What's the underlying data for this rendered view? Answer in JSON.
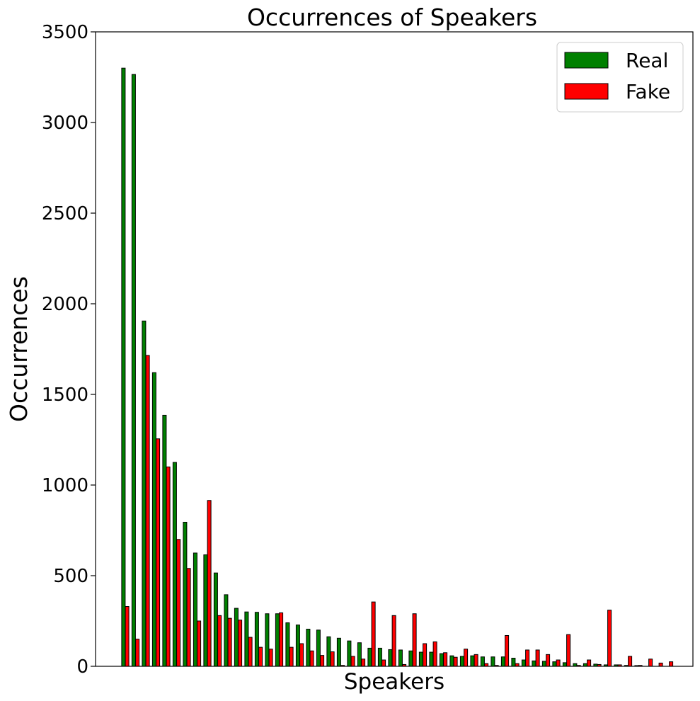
{
  "chart_data": {
    "type": "bar",
    "title": "Occurrences of Speakers",
    "xlabel": "Speakers",
    "ylabel": "Occurrences",
    "ylim": [
      0,
      3500
    ],
    "yticks": [
      "0",
      "500",
      "1000",
      "1500",
      "2000",
      "2500",
      "3000",
      "3500"
    ],
    "grid": false,
    "legend": "top-right",
    "series": [
      {
        "name": "Real",
        "color": "#008000",
        "values": [
          3300,
          3265,
          1905,
          1620,
          1385,
          1125,
          795,
          625,
          615,
          515,
          395,
          320,
          300,
          298,
          290,
          290,
          240,
          228,
          205,
          200,
          163,
          155,
          140,
          130,
          100,
          100,
          92,
          90,
          85,
          78,
          78,
          70,
          58,
          55,
          58,
          52,
          52,
          52,
          45,
          35,
          30,
          28,
          25,
          20,
          15,
          15,
          12,
          8,
          8,
          5,
          4
        ]
      },
      {
        "name": "Fake",
        "color": "#ff0000",
        "values": [
          330,
          150,
          1715,
          1255,
          1100,
          700,
          540,
          250,
          915,
          280,
          265,
          255,
          160,
          105,
          95,
          295,
          105,
          125,
          85,
          60,
          80,
          5,
          55,
          40,
          355,
          35,
          280,
          10,
          290,
          125,
          135,
          75,
          50,
          95,
          65,
          15,
          5,
          170,
          15,
          90,
          90,
          65,
          35,
          175,
          5,
          35,
          10,
          310,
          8,
          55,
          5,
          40,
          18,
          25
        ]
      }
    ]
  }
}
